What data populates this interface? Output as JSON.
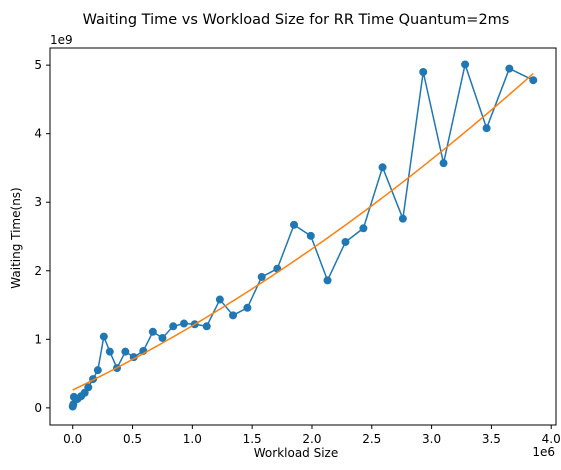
{
  "chart_data": {
    "type": "line",
    "title": "Waiting Time vs Workload Size for RR Time Quantum=2ms",
    "xlabel": "Workload Size",
    "ylabel": "Waiting Time(ns)",
    "x_offset_label": "1e6",
    "y_offset_label": "1e9",
    "xlim": [
      -0.19,
      4.04
    ],
    "ylim": [
      -0.25,
      5.25
    ],
    "x_ticks": [
      0.0,
      0.5,
      1.0,
      1.5,
      2.0,
      2.5,
      3.0,
      3.5,
      4.0
    ],
    "x_tick_labels": [
      "0.0",
      "0.5",
      "1.0",
      "1.5",
      "2.0",
      "2.5",
      "3.0",
      "3.5",
      "4.0"
    ],
    "y_ticks": [
      0,
      1,
      2,
      3,
      4,
      5
    ],
    "y_tick_labels": [
      "0",
      "1",
      "2",
      "3",
      "4",
      "5"
    ],
    "grid": false,
    "series": [
      {
        "color": "#1f77b4",
        "marker": "circle",
        "points": [
          [
            0.0,
            0.02
          ],
          [
            0.005,
            0.05
          ],
          [
            0.01,
            0.16
          ],
          [
            0.04,
            0.13
          ],
          [
            0.07,
            0.17
          ],
          [
            0.1,
            0.22
          ],
          [
            0.13,
            0.3
          ],
          [
            0.17,
            0.42
          ],
          [
            0.21,
            0.55
          ],
          [
            0.26,
            1.04
          ],
          [
            0.31,
            0.82
          ],
          [
            0.37,
            0.58
          ],
          [
            0.44,
            0.82
          ],
          [
            0.51,
            0.74
          ],
          [
            0.59,
            0.83
          ],
          [
            0.67,
            1.11
          ],
          [
            0.75,
            1.02
          ],
          [
            0.84,
            1.19
          ],
          [
            0.93,
            1.23
          ],
          [
            1.02,
            1.22
          ],
          [
            1.12,
            1.19
          ],
          [
            1.23,
            1.58
          ],
          [
            1.34,
            1.35
          ],
          [
            1.46,
            1.46
          ],
          [
            1.58,
            1.91
          ],
          [
            1.71,
            2.03
          ],
          [
            1.85,
            2.67
          ],
          [
            1.99,
            2.51
          ],
          [
            2.13,
            1.86
          ],
          [
            2.28,
            2.42
          ],
          [
            2.43,
            2.62
          ],
          [
            2.59,
            3.51
          ],
          [
            2.76,
            2.76
          ],
          [
            2.93,
            4.9
          ],
          [
            3.1,
            3.57
          ],
          [
            3.28,
            5.01
          ],
          [
            3.46,
            4.08
          ],
          [
            3.65,
            4.95
          ],
          [
            3.85,
            4.78
          ]
        ]
      },
      {
        "color": "#ff7f0e",
        "marker": "none",
        "fit": "quadratic",
        "coefficients": {
          "a": 0.0916,
          "b": 0.8468,
          "c": 0.26
        },
        "x_range": [
          0.0,
          3.85
        ]
      }
    ]
  }
}
